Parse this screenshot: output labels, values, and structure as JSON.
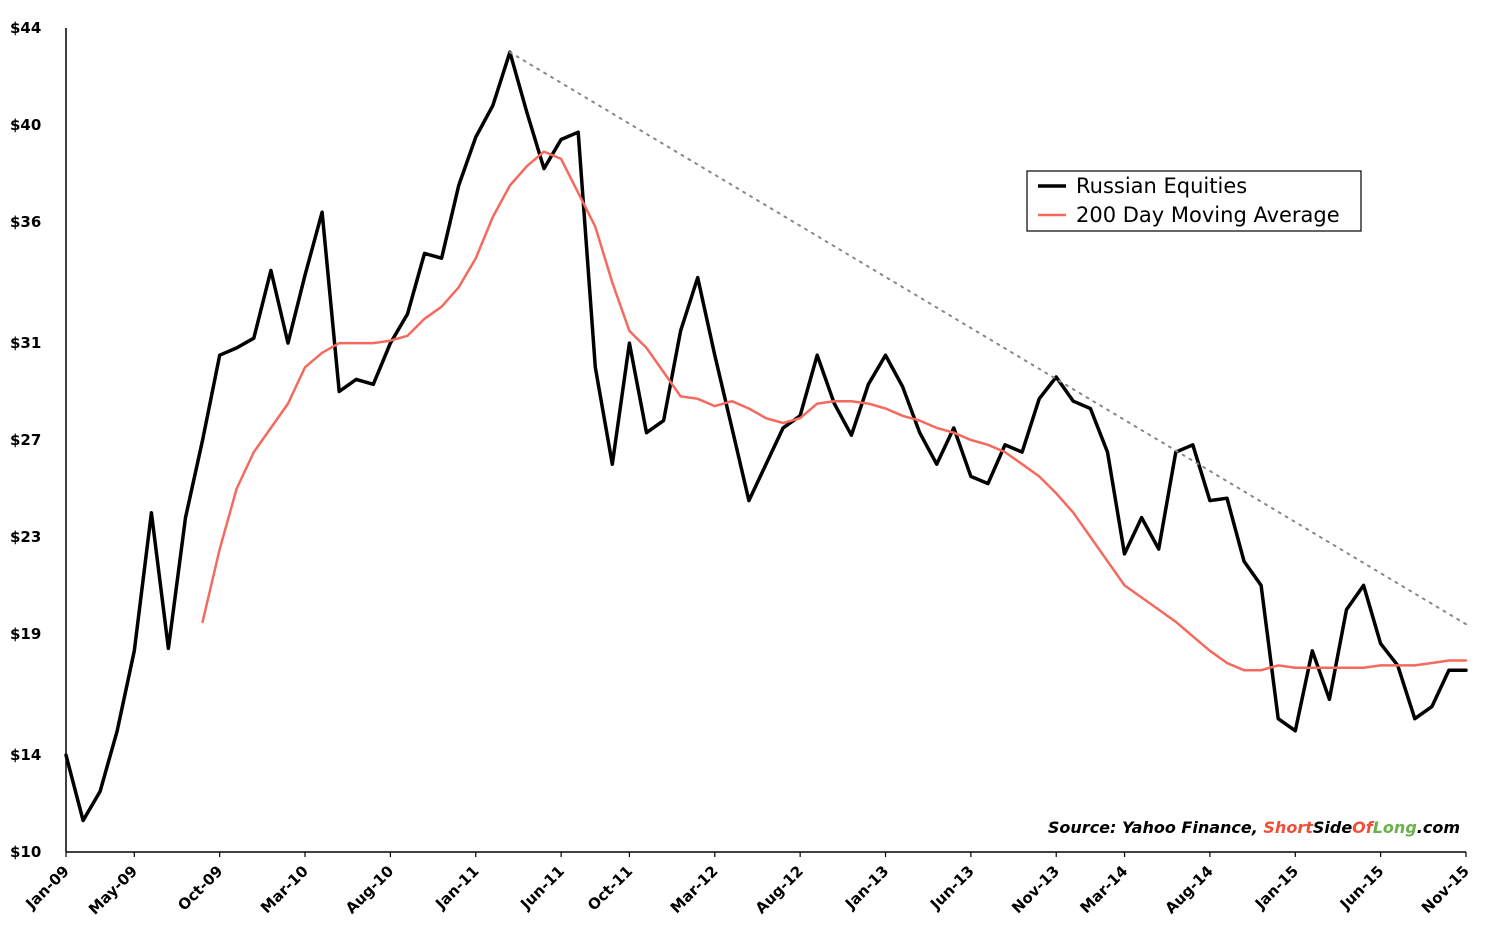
{
  "chart_data": {
    "type": "line",
    "title": "",
    "xlabel": "",
    "ylabel": "",
    "ylim": [
      10,
      44
    ],
    "grid": false,
    "legend_placement": "top-right",
    "y_tick_labels": [
      "$10",
      "$14",
      "$19",
      "$23",
      "$27",
      "$31",
      "$36",
      "$40",
      "$44"
    ],
    "x_tick_labels": [
      "Jan-09",
      "May-09",
      "Oct-09",
      "Mar-10",
      "Aug-10",
      "Jan-11",
      "Jun-11",
      "Oct-11",
      "Mar-12",
      "Aug-12",
      "Jan-13",
      "Jun-13",
      "Nov-13",
      "Mar-14",
      "Aug-14",
      "Jan-15",
      "Jun-15",
      "Nov-15"
    ],
    "series": [
      {
        "name": "Russian Equities",
        "color": "#000000",
        "points": [
          [
            "Jan-09",
            14.0
          ],
          [
            "Feb-09",
            11.3
          ],
          [
            "Mar-09",
            12.5
          ],
          [
            "Apr-09",
            15.0
          ],
          [
            "May-09",
            18.3
          ],
          [
            "Jun-09",
            24.0
          ],
          [
            "Jul-09",
            18.4
          ],
          [
            "Aug-09",
            23.8
          ],
          [
            "Sep-09",
            27.0
          ],
          [
            "Oct-09",
            30.5
          ],
          [
            "Nov-09",
            30.8
          ],
          [
            "Dec-09",
            31.2
          ],
          [
            "Jan-10",
            34.0
          ],
          [
            "Feb-10",
            31.0
          ],
          [
            "Mar-10",
            33.8
          ],
          [
            "Apr-10",
            36.4
          ],
          [
            "May-10",
            29.0
          ],
          [
            "Jun-10",
            29.5
          ],
          [
            "Jul-10",
            29.3
          ],
          [
            "Aug-10",
            31.0
          ],
          [
            "Sep-10",
            32.2
          ],
          [
            "Oct-10",
            34.7
          ],
          [
            "Nov-10",
            34.5
          ],
          [
            "Dec-10",
            37.5
          ],
          [
            "Jan-11",
            39.5
          ],
          [
            "Feb-11",
            40.8
          ],
          [
            "Mar-11",
            43.0
          ],
          [
            "Apr-11",
            40.5
          ],
          [
            "May-11",
            38.2
          ],
          [
            "Jun-11",
            39.4
          ],
          [
            "Jul-11",
            39.7
          ],
          [
            "Aug-11",
            30.0
          ],
          [
            "Sep-11",
            26.0
          ],
          [
            "Oct-11",
            31.0
          ],
          [
            "Nov-11",
            27.3
          ],
          [
            "Dec-11",
            27.8
          ],
          [
            "Jan-12",
            31.5
          ],
          [
            "Feb-12",
            33.7
          ],
          [
            "Mar-12",
            30.5
          ],
          [
            "Apr-12",
            27.5
          ],
          [
            "May-12",
            24.5
          ],
          [
            "Jun-12",
            26.0
          ],
          [
            "Jul-12",
            27.5
          ],
          [
            "Aug-12",
            28.0
          ],
          [
            "Sep-12",
            30.5
          ],
          [
            "Oct-12",
            28.5
          ],
          [
            "Nov-12",
            27.2
          ],
          [
            "Dec-12",
            29.3
          ],
          [
            "Jan-13",
            30.5
          ],
          [
            "Feb-13",
            29.2
          ],
          [
            "Mar-13",
            27.3
          ],
          [
            "Apr-13",
            26.0
          ],
          [
            "May-13",
            27.5
          ],
          [
            "Jun-13",
            25.5
          ],
          [
            "Jul-13",
            25.2
          ],
          [
            "Aug-13",
            26.8
          ],
          [
            "Sep-13",
            26.5
          ],
          [
            "Oct-13",
            28.7
          ],
          [
            "Nov-13",
            29.6
          ],
          [
            "Dec-13",
            28.6
          ],
          [
            "Jan-14",
            28.3
          ],
          [
            "Feb-14",
            26.5
          ],
          [
            "Mar-14",
            22.3
          ],
          [
            "Apr-14",
            23.8
          ],
          [
            "May-14",
            22.5
          ],
          [
            "Jun-14",
            26.5
          ],
          [
            "Jul-14",
            26.8
          ],
          [
            "Aug-14",
            24.5
          ],
          [
            "Sep-14",
            24.6
          ],
          [
            "Oct-14",
            22.0
          ],
          [
            "Nov-14",
            21.0
          ],
          [
            "Dec-14",
            15.5
          ],
          [
            "Jan-15",
            15.0
          ],
          [
            "Feb-15",
            18.3
          ],
          [
            "Mar-15",
            16.3
          ],
          [
            "Apr-15",
            20.0
          ],
          [
            "May-15",
            21.0
          ],
          [
            "Jun-15",
            18.6
          ],
          [
            "Jul-15",
            17.7
          ],
          [
            "Aug-15",
            15.5
          ],
          [
            "Sep-15",
            16.0
          ],
          [
            "Oct-15",
            17.5
          ],
          [
            "Nov-15",
            17.5
          ]
        ]
      },
      {
        "name": "200 Day Moving Average",
        "color": "#f46a5f",
        "points": [
          [
            "Sep-09",
            19.5
          ],
          [
            "Oct-09",
            22.5
          ],
          [
            "Nov-09",
            25.0
          ],
          [
            "Dec-09",
            26.5
          ],
          [
            "Jan-10",
            27.5
          ],
          [
            "Feb-10",
            28.5
          ],
          [
            "Mar-10",
            30.0
          ],
          [
            "Apr-10",
            30.6
          ],
          [
            "May-10",
            31.0
          ],
          [
            "Jun-10",
            31.0
          ],
          [
            "Jul-10",
            31.0
          ],
          [
            "Aug-10",
            31.1
          ],
          [
            "Sep-10",
            31.3
          ],
          [
            "Oct-10",
            32.0
          ],
          [
            "Nov-10",
            32.5
          ],
          [
            "Dec-10",
            33.3
          ],
          [
            "Jan-11",
            34.5
          ],
          [
            "Feb-11",
            36.2
          ],
          [
            "Mar-11",
            37.5
          ],
          [
            "Apr-11",
            38.3
          ],
          [
            "May-11",
            38.9
          ],
          [
            "Jun-11",
            38.6
          ],
          [
            "Jul-11",
            37.2
          ],
          [
            "Aug-11",
            35.8
          ],
          [
            "Sep-11",
            33.5
          ],
          [
            "Oct-11",
            31.5
          ],
          [
            "Nov-11",
            30.8
          ],
          [
            "Dec-11",
            29.8
          ],
          [
            "Jan-12",
            28.8
          ],
          [
            "Feb-12",
            28.7
          ],
          [
            "Mar-12",
            28.4
          ],
          [
            "Apr-12",
            28.6
          ],
          [
            "May-12",
            28.3
          ],
          [
            "Jun-12",
            27.9
          ],
          [
            "Jul-12",
            27.7
          ],
          [
            "Aug-12",
            27.9
          ],
          [
            "Sep-12",
            28.5
          ],
          [
            "Oct-12",
            28.6
          ],
          [
            "Nov-12",
            28.6
          ],
          [
            "Dec-12",
            28.5
          ],
          [
            "Jan-13",
            28.3
          ],
          [
            "Feb-13",
            28.0
          ],
          [
            "Mar-13",
            27.8
          ],
          [
            "Apr-13",
            27.5
          ],
          [
            "May-13",
            27.3
          ],
          [
            "Jun-13",
            27.0
          ],
          [
            "Jul-13",
            26.8
          ],
          [
            "Aug-13",
            26.5
          ],
          [
            "Sep-13",
            26.0
          ],
          [
            "Oct-13",
            25.5
          ],
          [
            "Nov-13",
            24.8
          ],
          [
            "Dec-13",
            24.0
          ],
          [
            "Jan-14",
            23.0
          ],
          [
            "Feb-14",
            22.0
          ],
          [
            "Mar-14",
            21.0
          ],
          [
            "Apr-14",
            20.5
          ],
          [
            "May-14",
            20.0
          ],
          [
            "Jun-14",
            19.5
          ],
          [
            "Jul-14",
            18.9
          ],
          [
            "Aug-14",
            18.3
          ],
          [
            "Sep-14",
            17.8
          ],
          [
            "Oct-14",
            17.5
          ],
          [
            "Nov-14",
            17.5
          ],
          [
            "Dec-14",
            17.7
          ],
          [
            "Jan-15",
            17.6
          ],
          [
            "Feb-15",
            17.6
          ],
          [
            "Mar-15",
            17.6
          ],
          [
            "Apr-15",
            17.6
          ],
          [
            "May-15",
            17.6
          ],
          [
            "Jun-15",
            17.7
          ],
          [
            "Jul-15",
            17.7
          ],
          [
            "Aug-15",
            17.7
          ],
          [
            "Sep-15",
            17.8
          ],
          [
            "Oct-15",
            17.9
          ],
          [
            "Nov-15",
            17.9
          ]
        ]
      },
      {
        "type": "trendline",
        "style": "dotted",
        "color": "#888888",
        "points": [
          [
            "Mar-11",
            43.0
          ],
          [
            "Nov-15",
            19.4
          ]
        ]
      }
    ],
    "annotations": {
      "source_prefix": "Source: Yahoo Finance, ",
      "source_short": "Short",
      "source_side": "Side",
      "source_of": "Of",
      "source_long": "Long",
      "source_suffix": ".com",
      "colors": {
        "short": "#f04e37",
        "side": "#000000",
        "of": "#f04e37",
        "long": "#6ab04c",
        "suffix": "#000000"
      }
    }
  }
}
